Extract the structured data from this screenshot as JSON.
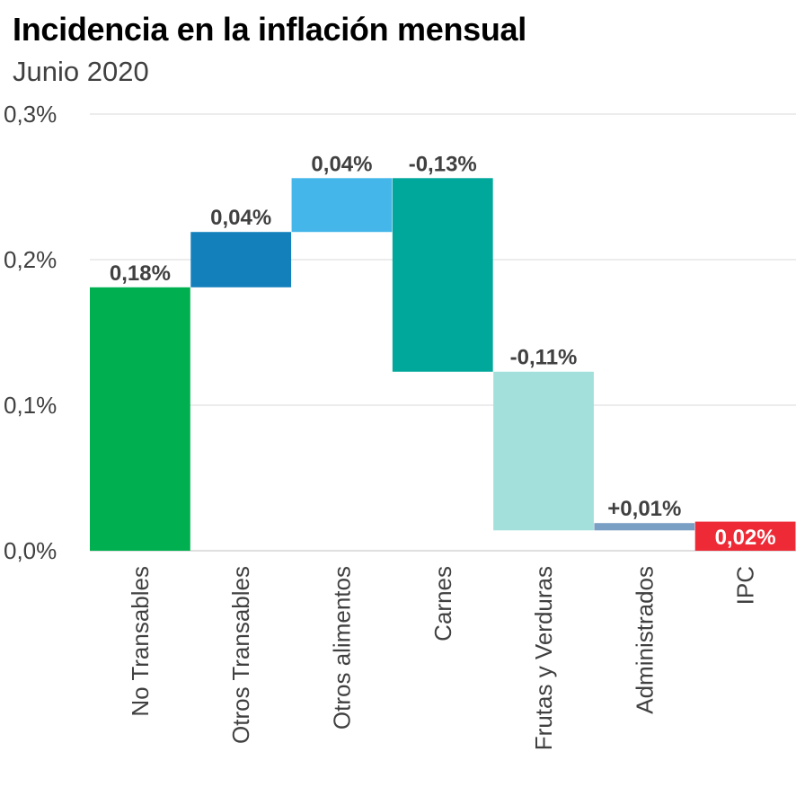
{
  "title": "Incidencia en la inflación mensual",
  "subtitle": "Junio 2020",
  "chart_data": {
    "type": "waterfall",
    "title": "Incidencia en la inflación mensual",
    "subtitle": "Junio 2020",
    "xlabel": "",
    "ylabel": "",
    "ylim": [
      0,
      0.3
    ],
    "yticks": [
      0.0,
      0.1,
      0.2,
      0.3
    ],
    "ytick_labels": [
      "0,0%",
      "0,1%",
      "0,2%",
      "0,3%"
    ],
    "grid": true,
    "categories": [
      "No Transables",
      "Otros Transables",
      "Otros alimentos",
      "Carnes",
      "Frutas y Verduras",
      "Administrados",
      "IPC"
    ],
    "values": [
      0.18,
      0.04,
      0.04,
      -0.13,
      -0.11,
      0.01,
      0.02
    ],
    "labels": [
      "0,18%",
      "0,04%",
      "0,04%",
      "-0,13%",
      "-0,11%",
      "+0,01%",
      "0,02%"
    ],
    "bars": [
      {
        "from": 0.0,
        "to": 0.181,
        "color": "#00b050"
      },
      {
        "from": 0.181,
        "to": 0.219,
        "color": "#1380bc"
      },
      {
        "from": 0.219,
        "to": 0.256,
        "color": "#45b6ea"
      },
      {
        "from": 0.256,
        "to": 0.123,
        "color": "#00a89b"
      },
      {
        "from": 0.123,
        "to": 0.014,
        "color": "#a3e0dc"
      },
      {
        "from": 0.014,
        "to": 0.019,
        "color": "#7a9fc4"
      },
      {
        "from": 0.0,
        "to": 0.02,
        "color": "#ee2a36"
      }
    ]
  }
}
